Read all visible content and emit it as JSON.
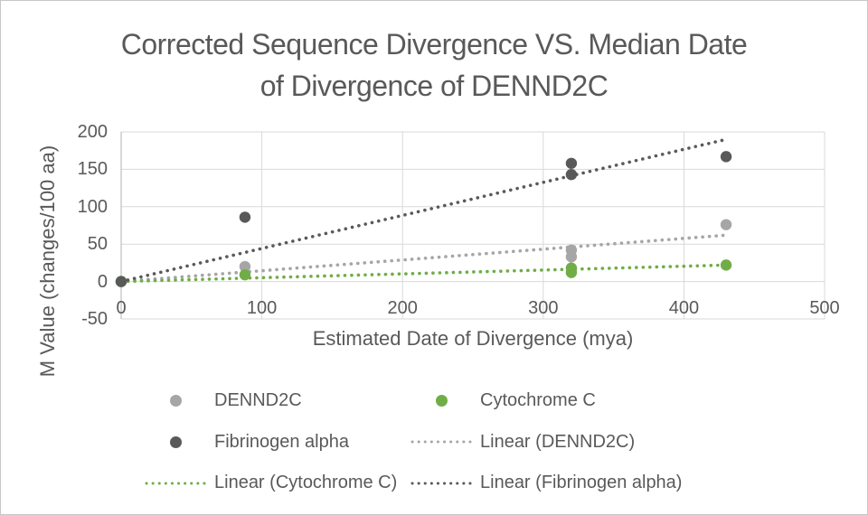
{
  "chart_data": {
    "type": "scatter",
    "title": "Corrected Sequence Divergence VS. Median Date of Divergence of DENND2C",
    "title_lines": [
      "Corrected Sequence Divergence VS. Median Date",
      "of Divergence of DENND2C"
    ],
    "xlabel": "Estimated Date of Divergence (mya)",
    "ylabel": "M Value (changes/100 aa)",
    "xlim": [
      0,
      500
    ],
    "ylim": [
      -50,
      200
    ],
    "x_ticks": [
      0,
      100,
      200,
      300,
      400,
      500
    ],
    "y_ticks": [
      -50,
      0,
      50,
      100,
      150,
      200
    ],
    "grid": true,
    "legend_position": "bottom",
    "series": [
      {
        "name": "DENND2C",
        "kind": "points",
        "color": "#a6a6a6",
        "points": [
          [
            0,
            0
          ],
          [
            88,
            20
          ],
          [
            320,
            42
          ],
          [
            320,
            33
          ],
          [
            430,
            76
          ]
        ]
      },
      {
        "name": "Cytochrome C",
        "kind": "points",
        "color": "#70ad47",
        "points": [
          [
            0,
            0
          ],
          [
            88,
            9
          ],
          [
            320,
            18
          ],
          [
            320,
            12
          ],
          [
            430,
            22
          ]
        ]
      },
      {
        "name": "Fibrinogen alpha",
        "kind": "points",
        "color": "#595959",
        "points": [
          [
            0,
            0
          ],
          [
            88,
            86
          ],
          [
            320,
            158
          ],
          [
            320,
            143
          ],
          [
            430,
            167
          ]
        ]
      },
      {
        "name": "Linear (DENND2C)",
        "kind": "trendline",
        "style": "dotted",
        "color": "#a6a6a6",
        "points": [
          [
            0,
            0
          ],
          [
            430,
            62
          ]
        ]
      },
      {
        "name": "Linear (Cytochrome C)",
        "kind": "trendline",
        "style": "dotted",
        "color": "#70ad47",
        "points": [
          [
            0,
            0
          ],
          [
            430,
            22
          ]
        ]
      },
      {
        "name": "Linear (Fibrinogen alpha)",
        "kind": "trendline",
        "style": "dotted",
        "color": "#595959",
        "points": [
          [
            0,
            0
          ],
          [
            430,
            190
          ]
        ]
      }
    ]
  },
  "legend": {
    "rows": [
      [
        {
          "series": "DENND2C",
          "marker": "dot"
        },
        {
          "series": "Cytochrome C",
          "marker": "dot"
        }
      ],
      [
        {
          "series": "Fibrinogen alpha",
          "marker": "dot"
        },
        {
          "series": "Linear (DENND2C)",
          "marker": "dotted-line"
        }
      ],
      [
        {
          "series": "Linear (Cytochrome C)",
          "marker": "dotted-line"
        },
        {
          "series": "Linear (Fibrinogen alpha)",
          "marker": "dotted-line"
        }
      ]
    ]
  },
  "colors": {
    "text": "#595959",
    "gridline": "#d9d9d9",
    "axis_line": "#bfbfbf",
    "background": "#ffffff",
    "border": "#c8c8c8"
  }
}
